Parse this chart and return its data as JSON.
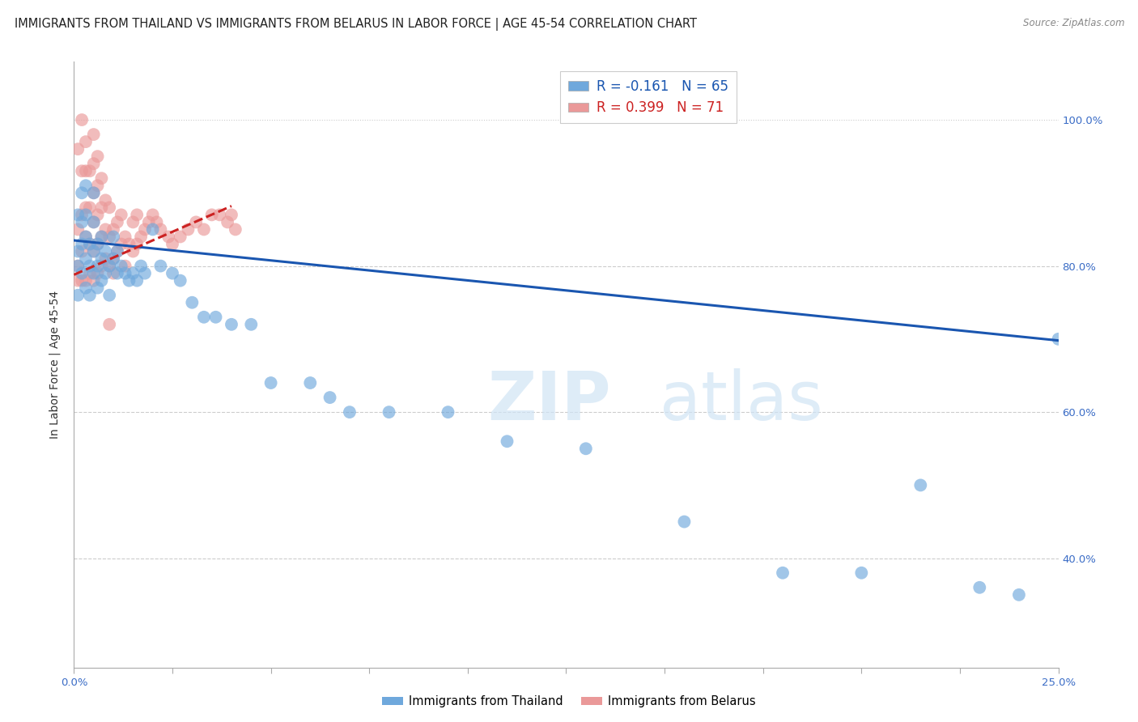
{
  "title": "IMMIGRANTS FROM THAILAND VS IMMIGRANTS FROM BELARUS IN LABOR FORCE | AGE 45-54 CORRELATION CHART",
  "source": "Source: ZipAtlas.com",
  "ylabel": "In Labor Force | Age 45-54",
  "xlim": [
    0.0,
    0.25
  ],
  "ylim": [
    0.25,
    1.08
  ],
  "y_ticks": [
    0.4,
    0.6,
    0.8,
    1.0
  ],
  "x_tick_positions": [
    0.0,
    0.025,
    0.05,
    0.075,
    0.1,
    0.125,
    0.15,
    0.175,
    0.2,
    0.225,
    0.25
  ],
  "blue_R": -0.161,
  "blue_N": 65,
  "pink_R": 0.399,
  "pink_N": 71,
  "blue_color": "#6fa8dc",
  "pink_color": "#ea9999",
  "blue_line_color": "#1a56b0",
  "pink_line_color": "#cc2222",
  "legend_blue_label": "Immigrants from Thailand",
  "legend_pink_label": "Immigrants from Belarus",
  "blue_trend_x": [
    0.0,
    0.25
  ],
  "blue_trend_y": [
    0.835,
    0.698
  ],
  "pink_trend_x": [
    0.0,
    0.04
  ],
  "pink_trend_y": [
    0.788,
    0.882
  ],
  "grid_color": "#cccccc",
  "background_color": "#ffffff",
  "blue_scatter_x": [
    0.001,
    0.001,
    0.001,
    0.001,
    0.002,
    0.002,
    0.002,
    0.002,
    0.003,
    0.003,
    0.003,
    0.003,
    0.003,
    0.004,
    0.004,
    0.004,
    0.005,
    0.005,
    0.005,
    0.005,
    0.006,
    0.006,
    0.006,
    0.007,
    0.007,
    0.007,
    0.008,
    0.008,
    0.009,
    0.009,
    0.01,
    0.01,
    0.011,
    0.011,
    0.012,
    0.013,
    0.014,
    0.015,
    0.016,
    0.017,
    0.018,
    0.02,
    0.022,
    0.025,
    0.027,
    0.03,
    0.033,
    0.036,
    0.04,
    0.045,
    0.05,
    0.06,
    0.065,
    0.07,
    0.08,
    0.095,
    0.11,
    0.13,
    0.155,
    0.18,
    0.2,
    0.215,
    0.23,
    0.24,
    0.25
  ],
  "blue_scatter_y": [
    0.82,
    0.87,
    0.8,
    0.76,
    0.83,
    0.79,
    0.86,
    0.9,
    0.81,
    0.77,
    0.84,
    0.87,
    0.91,
    0.8,
    0.76,
    0.83,
    0.79,
    0.82,
    0.86,
    0.9,
    0.8,
    0.77,
    0.83,
    0.81,
    0.78,
    0.84,
    0.79,
    0.82,
    0.8,
    0.76,
    0.81,
    0.84,
    0.79,
    0.82,
    0.8,
    0.79,
    0.78,
    0.79,
    0.78,
    0.8,
    0.79,
    0.85,
    0.8,
    0.79,
    0.78,
    0.75,
    0.73,
    0.73,
    0.72,
    0.72,
    0.64,
    0.64,
    0.62,
    0.6,
    0.6,
    0.6,
    0.56,
    0.55,
    0.45,
    0.38,
    0.38,
    0.5,
    0.36,
    0.35,
    0.7
  ],
  "pink_scatter_x": [
    0.001,
    0.001,
    0.001,
    0.001,
    0.002,
    0.002,
    0.002,
    0.002,
    0.002,
    0.003,
    0.003,
    0.003,
    0.003,
    0.003,
    0.004,
    0.004,
    0.004,
    0.004,
    0.005,
    0.005,
    0.005,
    0.005,
    0.005,
    0.005,
    0.006,
    0.006,
    0.006,
    0.006,
    0.006,
    0.007,
    0.007,
    0.007,
    0.007,
    0.008,
    0.008,
    0.008,
    0.009,
    0.009,
    0.009,
    0.009,
    0.01,
    0.01,
    0.01,
    0.011,
    0.011,
    0.012,
    0.012,
    0.013,
    0.013,
    0.014,
    0.015,
    0.015,
    0.016,
    0.016,
    0.017,
    0.018,
    0.019,
    0.02,
    0.021,
    0.022,
    0.024,
    0.025,
    0.027,
    0.029,
    0.031,
    0.033,
    0.035,
    0.037,
    0.039,
    0.04,
    0.041
  ],
  "pink_scatter_y": [
    0.8,
    0.85,
    0.78,
    0.96,
    0.82,
    0.87,
    0.78,
    0.93,
    1.0,
    0.78,
    0.84,
    0.88,
    0.93,
    0.97,
    0.79,
    0.83,
    0.88,
    0.93,
    0.78,
    0.82,
    0.86,
    0.9,
    0.94,
    0.98,
    0.79,
    0.83,
    0.87,
    0.91,
    0.95,
    0.8,
    0.84,
    0.88,
    0.92,
    0.81,
    0.85,
    0.89,
    0.8,
    0.84,
    0.88,
    0.72,
    0.81,
    0.85,
    0.79,
    0.82,
    0.86,
    0.83,
    0.87,
    0.84,
    0.8,
    0.83,
    0.82,
    0.86,
    0.83,
    0.87,
    0.84,
    0.85,
    0.86,
    0.87,
    0.86,
    0.85,
    0.84,
    0.83,
    0.84,
    0.85,
    0.86,
    0.85,
    0.87,
    0.87,
    0.86,
    0.87,
    0.85
  ]
}
